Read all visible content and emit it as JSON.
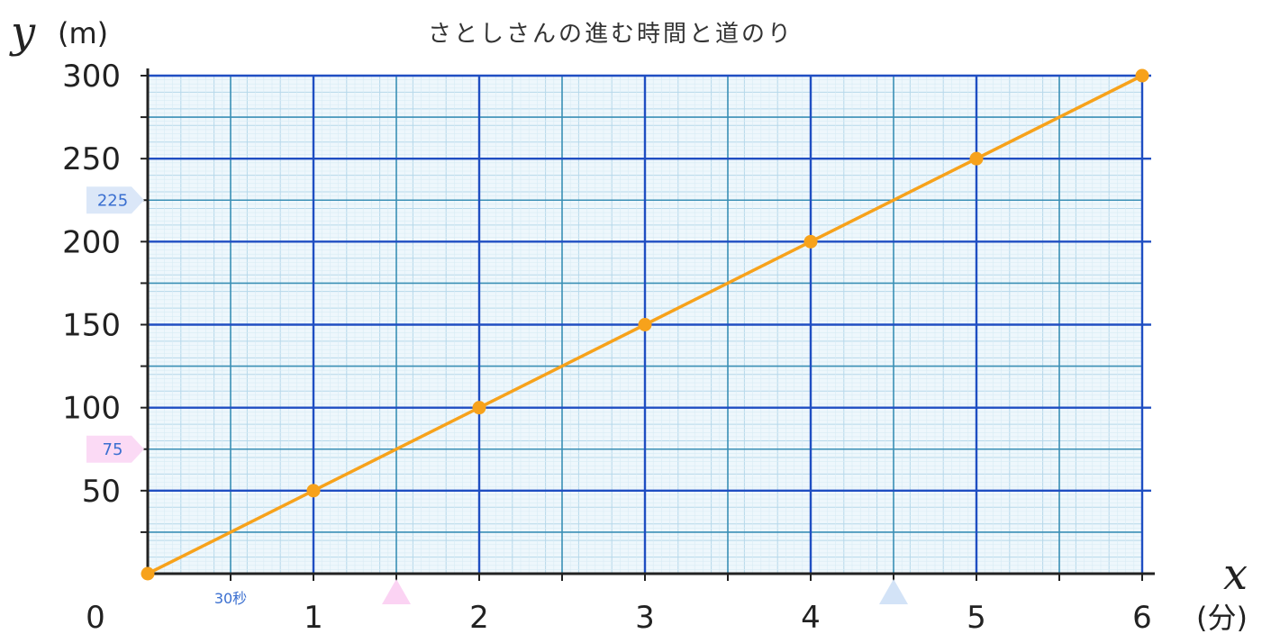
{
  "chart_data": {
    "type": "line",
    "title": "さとしさんの進む時間と道のり",
    "xlabel": "x",
    "x_unit": "(分)",
    "ylabel": "y",
    "y_unit": "(m)",
    "xlim": [
      0,
      6
    ],
    "ylim": [
      0,
      300
    ],
    "x_ticks": [
      "0",
      "1",
      "2",
      "3",
      "4",
      "5",
      "6"
    ],
    "y_ticks": [
      "50",
      "100",
      "150",
      "200",
      "250",
      "300"
    ],
    "x_ticks_values": [
      0,
      1,
      2,
      3,
      4,
      5,
      6
    ],
    "y_ticks_values": [
      50,
      100,
      150,
      200,
      250,
      300
    ],
    "grid": true,
    "series": [
      {
        "x": [
          0,
          1,
          2,
          3,
          4,
          5,
          6
        ],
        "y": [
          0,
          50,
          100,
          150,
          200,
          250,
          300
        ],
        "color": "#f7a21b"
      }
    ],
    "annotations": [
      {
        "text": "30秒",
        "x": 0.5,
        "color": "#3a6fd0"
      },
      {
        "text": "225",
        "y": 225,
        "color": "#3a6fd0",
        "fill": "#dbe7f8"
      },
      {
        "text": "75",
        "y": 75,
        "color": "#3a6fd0",
        "fill": "#fbdaf5"
      }
    ],
    "markers": [
      {
        "x": 1.5,
        "color": "#fbd3f3"
      },
      {
        "x": 4.5,
        "color": "#d3e3f7"
      }
    ]
  },
  "colors": {
    "line": "#f7a21b",
    "major_grid": "#1f4ec2",
    "mid_grid": "#3a8fb5",
    "minor_grid": "#b6d8ea",
    "axis": "#222222"
  }
}
